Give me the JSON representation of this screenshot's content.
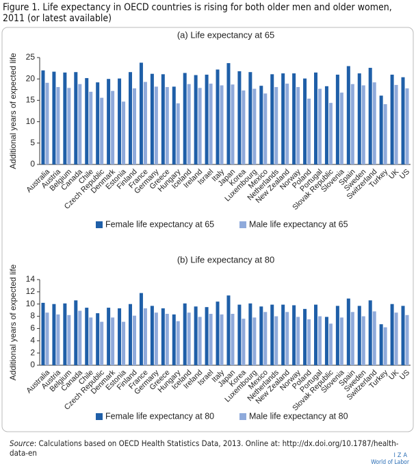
{
  "header": {
    "title": "Figure 1. Life expectancy in OECD countries is rising for both older men and older women, 2011 (or latest available)"
  },
  "chart_data": [
    {
      "type": "bar",
      "title": "(a) Life expectancy at 65",
      "y_label": "Additional years of expected life",
      "categories": [
        "Australia",
        "Austria",
        "Belgium",
        "Canada",
        "Chile",
        "Czech Republic",
        "Denmark",
        "Estonia",
        "Finland",
        "France",
        "Germany",
        "Greece",
        "Hungary",
        "Iceland",
        "Ireland",
        "Israel",
        "Italy",
        "Japan",
        "Korea",
        "Luxembourg",
        "Mexico",
        "Netherlands",
        "New Zealand",
        "Norway",
        "Poland",
        "Portugal",
        "Slovak Republic",
        "Slovenia",
        "Spain",
        "Sweden",
        "Switzerland",
        "Turkey",
        "UK",
        "US"
      ],
      "series": [
        {
          "name": "Female life expectancy at 65",
          "color": "#1f5fa8",
          "values": [
            22.0,
            21.7,
            21.5,
            21.6,
            20.2,
            19.2,
            20.0,
            20.1,
            21.6,
            23.8,
            21.2,
            21.1,
            18.2,
            21.4,
            20.9,
            21.0,
            22.2,
            23.7,
            21.8,
            21.6,
            18.4,
            21.1,
            21.3,
            21.3,
            20.1,
            21.5,
            18.3,
            21.0,
            23.0,
            21.3,
            22.6,
            16.1,
            21.0,
            20.4
          ]
        },
        {
          "name": "Male life expectancy at 65",
          "color": "#8faadb",
          "values": [
            19.1,
            18.1,
            17.9,
            18.8,
            17.0,
            15.6,
            17.2,
            14.7,
            17.8,
            19.3,
            18.2,
            18.1,
            14.3,
            18.8,
            17.9,
            18.9,
            18.5,
            18.7,
            17.3,
            17.7,
            16.6,
            18.1,
            18.9,
            18.1,
            15.4,
            17.7,
            14.4,
            16.8,
            18.8,
            18.5,
            19.2,
            14.1,
            18.6,
            17.8
          ]
        }
      ],
      "ylim": [
        0,
        25
      ],
      "yticks": [
        0,
        5,
        10,
        15,
        20,
        25
      ],
      "grid": false,
      "legend": "bottom"
    },
    {
      "type": "bar",
      "title": "(b) Life expectancy at 80",
      "y_label": "Additional years of expected life",
      "categories": [
        "Australia",
        "Austria",
        "Belgium",
        "Canada",
        "Chile",
        "Czech Republic",
        "Denmark",
        "Estonia",
        "Finland",
        "France",
        "Germany",
        "Greece",
        "Hungary",
        "Iceland",
        "Ireland",
        "Israel",
        "Italy",
        "Japan",
        "Korea",
        "Luxembourg",
        "Mexico",
        "Netherlands",
        "New Zealand",
        "Norway",
        "Poland",
        "Portugal",
        "Slovak Republic",
        "Slovenia",
        "Spain",
        "Sweden",
        "Switzerland",
        "Turkey",
        "UK",
        "US"
      ],
      "series": [
        {
          "name": "Female life expectancy at 80",
          "color": "#1f5fa8",
          "values": [
            10.2,
            10.0,
            10.1,
            10.6,
            9.4,
            8.5,
            9.4,
            9.3,
            10.0,
            11.8,
            9.7,
            9.3,
            8.3,
            10.1,
            9.6,
            9.5,
            10.4,
            11.4,
            9.9,
            10.1,
            9.6,
            9.9,
            9.9,
            9.8,
            9.2,
            9.9,
            7.9,
            9.7,
            10.9,
            9.7,
            10.6,
            6.7,
            10.0,
            9.7
          ]
        },
        {
          "name": "Male life expectancy at 80",
          "color": "#8faadb",
          "values": [
            8.6,
            8.3,
            8.2,
            8.9,
            7.8,
            7.1,
            7.8,
            7.1,
            8.1,
            9.3,
            8.6,
            8.4,
            7.2,
            8.6,
            7.9,
            8.4,
            8.3,
            8.4,
            7.6,
            7.8,
            8.7,
            8.0,
            8.7,
            7.9,
            7.5,
            8.0,
            6.8,
            7.8,
            8.7,
            8.0,
            8.8,
            6.2,
            8.6,
            8.2
          ]
        }
      ],
      "ylim": [
        0,
        14
      ],
      "yticks": [
        0,
        2,
        4,
        6,
        8,
        10,
        12,
        14
      ],
      "grid": false,
      "legend": "bottom"
    }
  ],
  "footer": {
    "source_label": "Source",
    "source_text": ": Calculations based on OECD Health Statistics Data, 2013. Online at: http://dx.doi.org/10.1787/health-data-en"
  },
  "logo": {
    "name": "IZA",
    "tagline": "World of Labor"
  }
}
